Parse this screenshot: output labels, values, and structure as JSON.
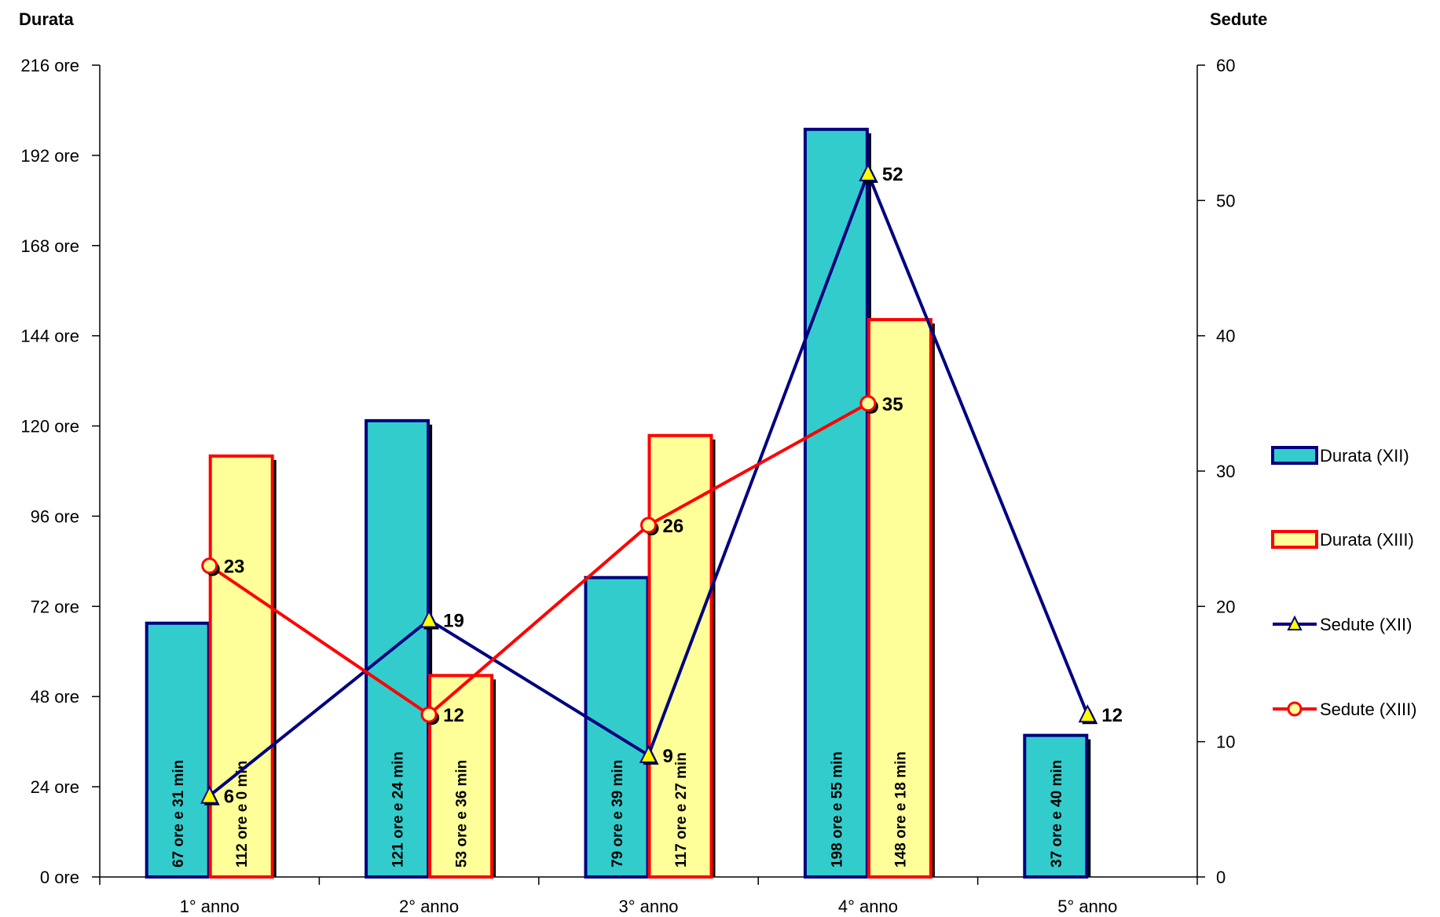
{
  "chart_data": {
    "type": "bar",
    "categories": [
      "1° anno",
      "2° anno",
      "3° anno",
      "4° anno",
      "5° anno"
    ],
    "y_left": {
      "title": "Durata",
      "ticks": [
        "0 ore",
        "24 ore",
        "48 ore",
        "72 ore",
        "96 ore",
        "120 ore",
        "144 ore",
        "168 ore",
        "192 ore",
        "216 ore"
      ],
      "range_hours": [
        0,
        216
      ]
    },
    "y_right": {
      "title": "Sedute",
      "ticks": [
        "0",
        "10",
        "20",
        "30",
        "40",
        "50",
        "60"
      ],
      "range": [
        0,
        60
      ]
    },
    "bar_series": [
      {
        "name": "Durata (XII)",
        "fill": "#33cccc",
        "stroke": "#000080",
        "values_hours": [
          67.52,
          121.4,
          79.65,
          198.92,
          37.67
        ],
        "labels": [
          "67 ore e 31 min",
          "121 ore e 24 min",
          "79 ore e 39 min",
          "198 ore e 55 min",
          "37 ore e 40 min"
        ]
      },
      {
        "name": "Durata (XIII)",
        "fill": "#ffff99",
        "stroke": "#ff0000",
        "values_hours": [
          112.0,
          53.6,
          117.45,
          148.3,
          null
        ],
        "labels": [
          "112 ore e 0 min",
          "53 ore e 36 min",
          "117 ore e 27 min",
          "148 ore e 18 min",
          ""
        ]
      }
    ],
    "line_series": [
      {
        "name": "Sedute (XII)",
        "stroke": "#000080",
        "marker": "triangle",
        "marker_fill": "#ffff00",
        "values": [
          6,
          19,
          9,
          52,
          12
        ],
        "labels": [
          "6",
          "19",
          "9",
          "52",
          "12"
        ]
      },
      {
        "name": "Sedute (XIII)",
        "stroke": "#ff0000",
        "marker": "circle",
        "marker_fill": "#ffff99",
        "values": [
          23,
          12,
          26,
          35,
          null
        ],
        "labels": [
          "23",
          "12",
          "26",
          "35",
          ""
        ]
      }
    ],
    "legend_position": "right",
    "grid": false
  }
}
